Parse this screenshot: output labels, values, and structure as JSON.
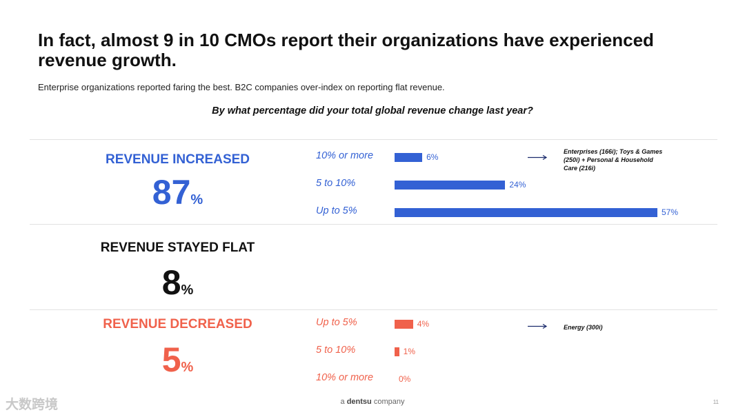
{
  "title": "In fact, almost 9 in 10 CMOs report their organizations have experienced revenue growth.",
  "subtitle": "Enterprise organizations reported faring the best. B2C companies over-index on reporting flat revenue.",
  "question": "By what percentage did your total global revenue change last year?",
  "colors": {
    "increase": "#3361d4",
    "flat": "#111111",
    "decrease": "#f0614b",
    "text": "#111111"
  },
  "sections": {
    "increased": {
      "label": "REVENUE INCREASED",
      "value": "87",
      "unit": "%"
    },
    "flat": {
      "label": "REVENUE STAYED FLAT",
      "value": "8",
      "unit": "%"
    },
    "decreased": {
      "label": "REVENUE DECREASED",
      "value": "5",
      "unit": "%"
    }
  },
  "annotations": {
    "increased": "Enterprises (166i); Toys & Games (250i) + Personal & Household Care (216i)",
    "decreased": "Energy (300i)"
  },
  "footer": {
    "prefix": "a",
    "brand": "dentsu",
    "suffix": "company",
    "page": "11"
  },
  "watermark": "大数跨境",
  "chart_data": [
    {
      "type": "bar",
      "orientation": "horizontal",
      "group": "Revenue increased",
      "categories": [
        "10% or more",
        "5 to 10%",
        "Up to 5%"
      ],
      "values": [
        6,
        24,
        57
      ],
      "value_labels": [
        "6%",
        "24%",
        "57%"
      ],
      "unit": "%",
      "xlim": [
        0,
        57
      ],
      "color": "#3361d4"
    },
    {
      "type": "bar",
      "orientation": "horizontal",
      "group": "Revenue decreased",
      "categories": [
        "Up to 5%",
        "5 to 10%",
        "10% or more"
      ],
      "values": [
        4,
        1,
        0
      ],
      "value_labels": [
        "4%",
        "1%",
        "0%"
      ],
      "unit": "%",
      "xlim": [
        0,
        57
      ],
      "color": "#f0614b"
    }
  ]
}
